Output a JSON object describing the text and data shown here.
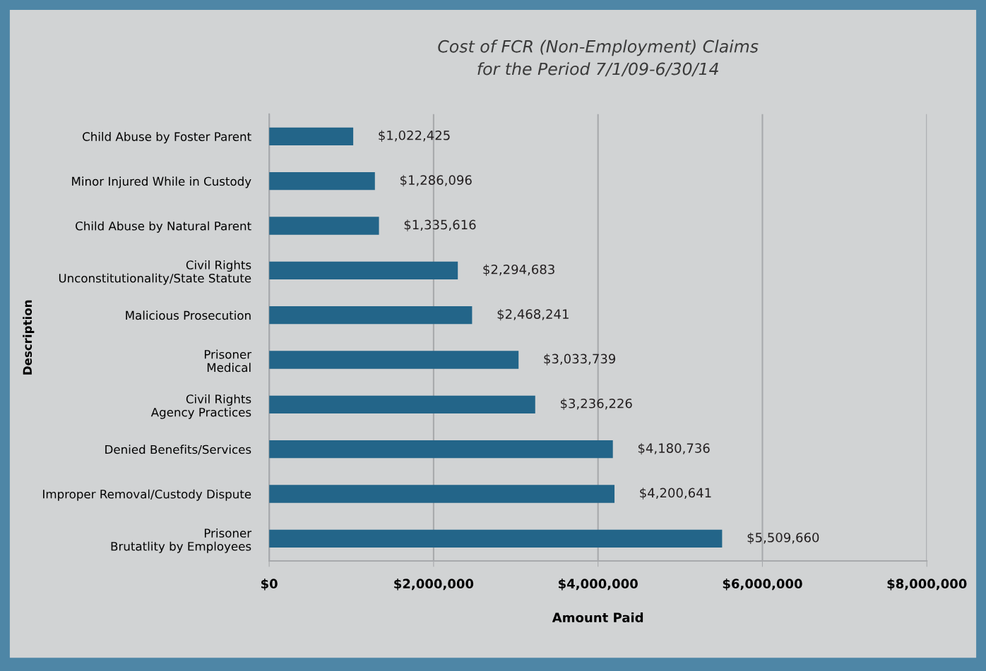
{
  "chart_data": {
    "type": "bar",
    "orientation": "horizontal",
    "title": "Cost of FCR (Non-Employment) Claims\nfor the Period 7/1/09-6/30/14",
    "xlabel": "Amount Paid",
    "ylabel": "Description",
    "categories": [
      "Child Abuse by Foster Parent",
      "Minor Injured While in Custody",
      "Child Abuse by Natural Parent",
      "Civil Rights\nUnconstitutionality/State Statute",
      "Malicious Prosecution",
      "Prisoner\nMedical",
      "Civil Rights\nAgency Practices",
      "Denied Benefits/Services",
      "Improper Removal/Custody Dispute",
      "Prisoner\nBrutatlity by Employees"
    ],
    "values": [
      1022425,
      1286096,
      1335616,
      2294683,
      2468241,
      3033739,
      3236226,
      4180736,
      4200641,
      5509660
    ],
    "value_labels": [
      "$1,022,425",
      "$1,286,096",
      "$1,335,616",
      "$2,294,683",
      "$2,468,241",
      "$3,033,739",
      "$3,236,226",
      "$4,180,736",
      "$4,200,641",
      "$5,509,660"
    ],
    "color": "#236589",
    "xlim": [
      0,
      8000000
    ],
    "xticks": [
      {
        "value": 0,
        "label": "$0"
      },
      {
        "value": 2000000,
        "label": "$2,000,000"
      },
      {
        "value": 4000000,
        "label": "$4,000,000"
      },
      {
        "value": 6000000,
        "label": "$6,000,000"
      },
      {
        "value": 8000000,
        "label": "$8,000,000"
      }
    ],
    "grid": "x",
    "legend": false
  }
}
